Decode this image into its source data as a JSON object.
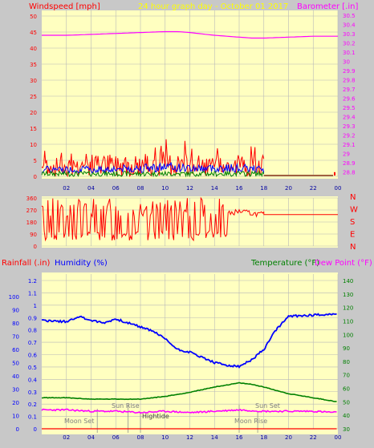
{
  "colors": {
    "background": "#c8c8c8",
    "plot": "#ffffc0",
    "grid": "#b8b8b8",
    "wind_axis": "#ff0000",
    "baro_axis": "#ff00ff",
    "title": "#ffff00",
    "humidity_axis": "#0000ff",
    "temp_axis": "#008000",
    "dew_axis": "#ff00ff",
    "dir_axis": "#ff0000"
  },
  "header": {
    "wind_label": "Windspeed [mph]",
    "title": "24 hour graph day - October 01 2017",
    "baro_label": "Barometer [.in]"
  },
  "lower_header": {
    "rain_label": "Rainfall (.in)",
    "humidity_label": "Humidity (%)",
    "temp_label": "Temperature (°F)",
    "dew_label": "Dew Point (°F)"
  },
  "events": {
    "moonset": "Moon Set",
    "sunrise": "Sun Rise",
    "hightide": "Hightide",
    "moonrise": "Moon Rise",
    "sunset": "Sun Set"
  },
  "chart_data": [
    {
      "type": "line",
      "x_ticks": [
        "02",
        "04",
        "06",
        "08",
        "10",
        "12",
        "14",
        "16",
        "18",
        "20",
        "22",
        "00"
      ],
      "y_left": {
        "ticks": [
          "0",
          "5",
          "10",
          "15",
          "20",
          "25",
          "30",
          "35",
          "40",
          "45",
          "50"
        ],
        "range": [
          0,
          50
        ]
      },
      "y_right": {
        "ticks": [
          "28.8",
          "28.9",
          "29",
          "29.1",
          "29.2",
          "29.3",
          "29.4",
          "29.5",
          "29.6",
          "29.7",
          "29.8",
          "29.9",
          "30",
          "30.1",
          "30.2",
          "30.3",
          "30.4",
          "30.5"
        ],
        "range": [
          28.75,
          30.55
        ]
      },
      "barometer": {
        "x": [
          0,
          2,
          4,
          6,
          8,
          10,
          11,
          12,
          14,
          16,
          17,
          18,
          20,
          22,
          24
        ],
        "y": [
          30.28,
          30.28,
          30.29,
          30.3,
          30.31,
          30.32,
          30.32,
          30.31,
          30.28,
          30.26,
          30.25,
          30.25,
          30.26,
          30.27,
          30.27
        ]
      },
      "wind_gust_max": {
        "x": [
          0,
          2,
          4,
          6,
          8,
          10,
          12,
          14,
          16,
          18
        ],
        "y": [
          6,
          6,
          7,
          7,
          7,
          8,
          7,
          6,
          6,
          6
        ]
      },
      "wind_avg": {
        "x": [
          0,
          4,
          8,
          10,
          12,
          16,
          18
        ],
        "y": [
          2.5,
          2.5,
          3,
          3.5,
          3,
          3,
          2.5
        ]
      }
    },
    {
      "type": "line",
      "y_left": {
        "ticks": [
          "0",
          "90",
          "180",
          "270",
          "360"
        ],
        "range": [
          0,
          360
        ]
      },
      "y_right": {
        "ticks": [
          "N",
          "W",
          "S",
          "E",
          "N"
        ]
      },
      "wind_direction": {
        "x": [
          0,
          3,
          6,
          9,
          12,
          14,
          15,
          16,
          17,
          18,
          24
        ],
        "y": [
          90,
          180,
          270,
          150,
          220,
          280,
          240,
          260,
          245,
          235,
          235
        ]
      }
    },
    {
      "type": "line",
      "x_ticks": [
        "02",
        "04",
        "06",
        "08",
        "10",
        "12",
        "14",
        "16",
        "18",
        "20",
        "22",
        "00"
      ],
      "y_rain": {
        "ticks": [
          "0",
          "0.1",
          "0.2",
          "0.3",
          "0.4",
          "0.5",
          "0.6",
          "0.7",
          "0.8",
          "0.9",
          "1",
          "1.1",
          "1.2"
        ],
        "range": [
          0,
          1.2
        ]
      },
      "y_humidity": {
        "ticks": [
          "0",
          "10",
          "20",
          "30",
          "40",
          "50",
          "60",
          "70",
          "80",
          "90",
          "100"
        ],
        "range": [
          0,
          100
        ]
      },
      "y_temp": {
        "ticks": [
          "30",
          "40",
          "50",
          "60",
          "70",
          "80",
          "90",
          "100",
          "110",
          "120",
          "130",
          "140"
        ],
        "range": [
          30,
          140
        ]
      },
      "humidity": {
        "x": [
          0,
          2,
          3,
          4,
          5,
          6,
          7,
          8,
          9,
          10,
          11,
          12,
          13,
          14,
          15,
          16,
          17,
          18,
          19,
          20,
          22,
          24
        ],
        "y": [
          82,
          81,
          85,
          82,
          80,
          83,
          80,
          77,
          74,
          68,
          60,
          58,
          54,
          50,
          48,
          47,
          52,
          60,
          75,
          85,
          86,
          87
        ]
      },
      "temperature": {
        "x": [
          0,
          2,
          4,
          6,
          8,
          10,
          12,
          14,
          16,
          17,
          18,
          20,
          22,
          24
        ],
        "y": [
          53,
          53,
          52,
          52,
          52,
          54,
          57,
          61,
          64,
          63,
          61,
          56,
          53,
          50
        ]
      },
      "dew_point": {
        "x": [
          0,
          2,
          4,
          6,
          8,
          10,
          12,
          14,
          16,
          18,
          20,
          22,
          24
        ],
        "y": [
          44,
          44,
          43,
          43,
          42,
          43,
          42,
          43,
          44,
          43,
          43,
          43,
          42
        ]
      },
      "rainfall": {
        "x": [
          0,
          24
        ],
        "y": [
          0,
          0
        ]
      }
    }
  ]
}
